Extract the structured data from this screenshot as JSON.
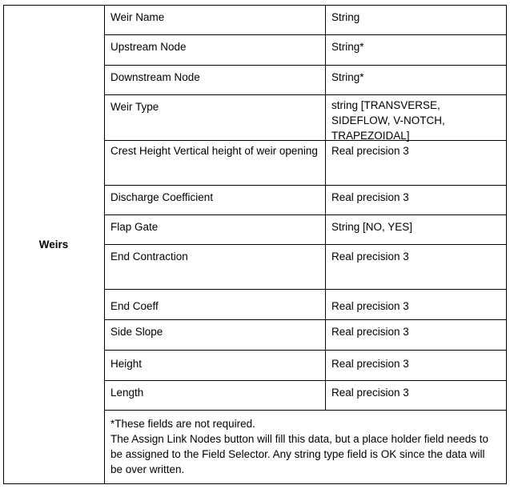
{
  "section_label": "Weirs",
  "rows": [
    {
      "field": "Weir Name",
      "type": "String"
    },
    {
      "field": "Upstream Node",
      "type": "String*"
    },
    {
      "field": "Downstream Node",
      "type": "String*"
    },
    {
      "field": "Weir Type",
      "type": "string [TRANSVERSE, SIDEFLOW, V-NOTCH, TRAPEZOIDAL]"
    },
    {
      "field": "Crest Height Vertical height of weir opening",
      "type": "Real precision 3"
    },
    {
      "field": "Discharge Coefficient",
      "type": "Real precision 3"
    },
    {
      "field": "Flap Gate",
      "type": "String [NO, YES]"
    },
    {
      "field": "End Contraction",
      "type": "Real precision 3"
    },
    {
      "field": "End Coeff",
      "type": "Real precision 3"
    },
    {
      "field": "Side Slope",
      "type": "Real precision 3"
    },
    {
      "field": "Height",
      "type": "Real precision 3"
    },
    {
      "field": "Length",
      "type": "Real precision 3"
    }
  ],
  "note": {
    "line1": "*These fields are not required.",
    "line2": "The Assign Link Nodes button will fill this data, but a place holder field needs to be assigned to the Field Selector.  Any string type field is OK since the data will be over written."
  }
}
